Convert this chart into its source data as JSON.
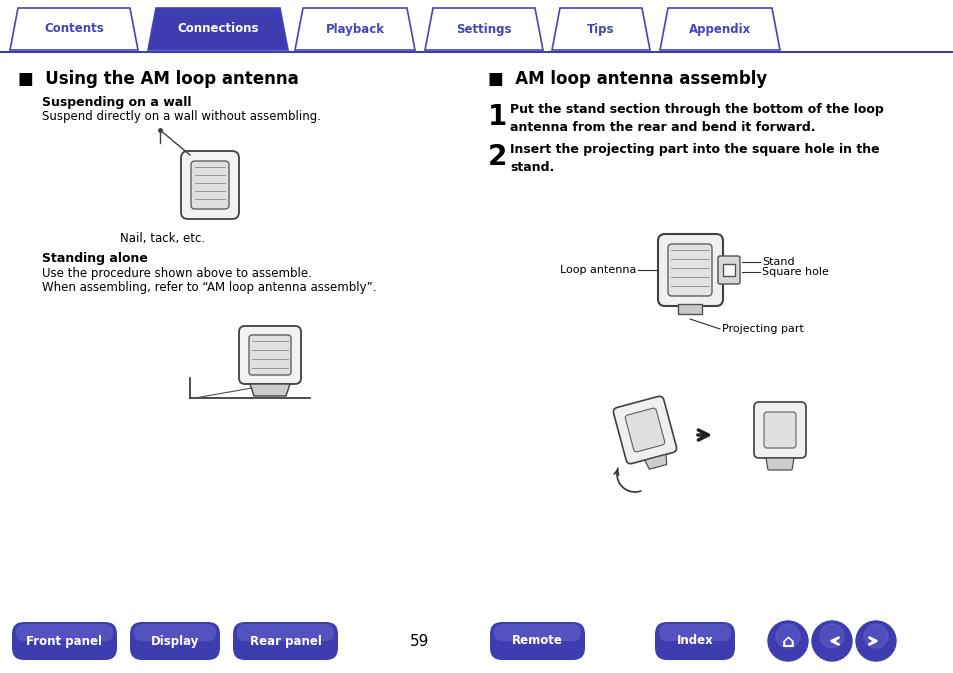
{
  "bg_color": "#ffffff",
  "tab_border_color": "#4444bb",
  "tab_active_bg": "#3d3db0",
  "tab_inactive_bg": "#ffffff",
  "tab_active_text": "#ffffff",
  "tab_inactive_text": "#4444bb",
  "tabs": [
    "Contents",
    "Connections",
    "Playback",
    "Settings",
    "Tips",
    "Appendix"
  ],
  "active_tab": 1,
  "bottom_buttons": [
    "Front panel",
    "Display",
    "Rear panel",
    "Remote",
    "Index"
  ],
  "page_number": "59",
  "title_left": "■  Using the AM loop antenna",
  "title_right": "■  AM loop antenna assembly",
  "sub1_bold": "Suspending on a wall",
  "sub1_text": "Suspend directly on a wall without assembling.",
  "sub1_caption": "Nail, tack, etc.",
  "sub2_bold": "Standing alone",
  "sub2_text1": "Use the procedure shown above to assemble.",
  "sub2_text2": "When assembling, refer to “AM loop antenna assembly”.",
  "step1_num": "1",
  "step1_text": "Put the stand section through the bottom of the loop\nantenna from the rear and bend it forward.",
  "step2_num": "2",
  "step2_text": "Insert the projecting part into the square hole in the\nstand.",
  "label_stand": "Stand",
  "label_square_hole": "Square hole",
  "label_loop_antenna": "Loop antenna",
  "label_projecting": "Projecting part",
  "button_color": "#3d3db0",
  "text_color": "#000000",
  "divider_color": "#3d3db0"
}
